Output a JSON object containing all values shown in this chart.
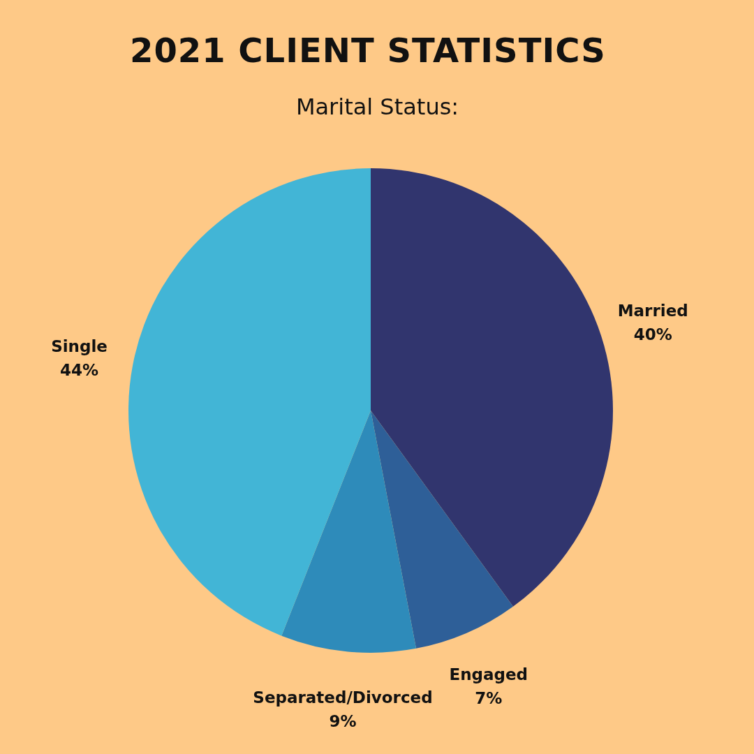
{
  "chart_data": {
    "type": "pie",
    "title": "2021 CLIENT STATISTICS",
    "subtitle": "Marital Status:",
    "categories": [
      "Married",
      "Engaged",
      "Separated/Divorced",
      "Single"
    ],
    "values": [
      40,
      7,
      9,
      44
    ],
    "colors": [
      "#31356e",
      "#2e5f98",
      "#2e8bba",
      "#42b5d6"
    ],
    "value_labels": [
      "40%",
      "7%",
      "9%",
      "44%"
    ]
  }
}
